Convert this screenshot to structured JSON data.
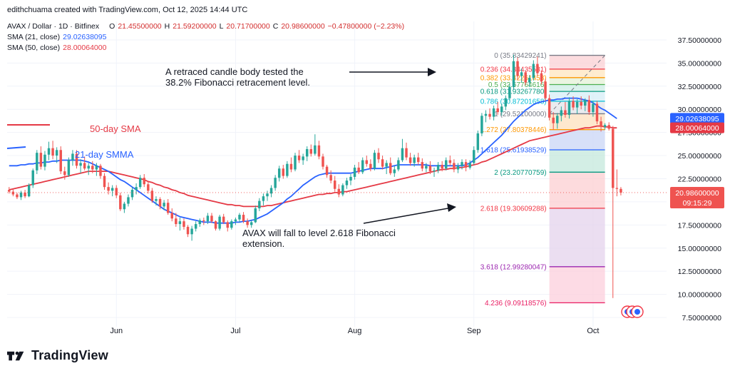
{
  "header": {
    "credit": "edithchuama created with TradingView.com, Oct 12, 2025 14:44 UTC"
  },
  "legend": {
    "symbol": "AVAX / Dollar · 1D · Bitfinex",
    "o_label": "O",
    "o_value": "21.45500000",
    "h_label": "H",
    "h_value": "21.59200000",
    "l_label": "L",
    "l_value": "20.71700000",
    "c_label": "C",
    "c_value": "20.98600000",
    "change": "−0.47800000 (−2.23%)",
    "sma21_label": "SMA (21, close)",
    "sma21_value": "29.02638095",
    "sma50_label": "SMA (50, close)",
    "sma50_value": "28.00064000"
  },
  "annotations": {
    "note1": "A retraced candle body tested the 38.2% Fibonacci retracement level.",
    "note2": "AVAX  will fall to level 2.618 Fibonacci extension.",
    "sma50_label": "50-day SMA",
    "sma21_label": "21-day SMMA"
  },
  "price_labels": {
    "last_price": "20.98600000",
    "countdown": "09:15:29",
    "sma21": "29.02638095",
    "sma50": "28.00064000"
  },
  "colors": {
    "up": "#26a69a",
    "down": "#ef5350",
    "sma21": "#2962ff",
    "sma50": "#e53945",
    "grid": "#f0f3fa"
  },
  "logo": {
    "text": "TradingView"
  },
  "chart_data": {
    "type": "candlestick",
    "y_axis_ticks": [
      "37.50000000",
      "35.00000000",
      "32.50000000",
      "30.00000000",
      "27.50000000",
      "25.00000000",
      "22.50000000",
      "20.00000000",
      "17.50000000",
      "15.00000000",
      "12.50000000",
      "10.00000000",
      "7.50000000"
    ],
    "y_tick_values": [
      37.5,
      35,
      32.5,
      30,
      27.5,
      25,
      22.5,
      20,
      17.5,
      15,
      12.5,
      10,
      7.5
    ],
    "ylim": [
      6.5,
      39.5
    ],
    "x_axis_ticks": [
      "Jun",
      "Jul",
      "Aug",
      "Sep",
      "Oct"
    ],
    "x_tick_index": [
      27,
      57,
      87,
      117,
      147
    ],
    "bar_count": 159,
    "fibonacci": [
      {
        "level": "0",
        "label": "0 (35.83429241)",
        "value": 35.83429241,
        "color": "#787b86"
      },
      {
        "level": "0.236",
        "label": "0.236 (34.34435581)",
        "value": 34.34435581,
        "color": "#f23645"
      },
      {
        "level": "0.382",
        "label": "0.382 (33.42261453)",
        "value": 33.42261453,
        "color": "#ff9800"
      },
      {
        "level": "0.5",
        "label": "0.5 (32.67764616)",
        "value": 32.67764616,
        "color": "#4caf50"
      },
      {
        "level": "0.618",
        "label": "0.618 (31.93267780)",
        "value": 31.9326778,
        "color": "#089981"
      },
      {
        "level": "0.786",
        "label": "0.786 (30.87201658)",
        "value": 30.87201658,
        "color": "#00bcd4"
      },
      {
        "level": "1",
        "label": "1 (29.52100000)",
        "value": 29.521,
        "color": "#787b86"
      },
      {
        "level": "1.272",
        "label": "1.272 (27.80378446)",
        "value": 27.80378446,
        "color": "#ff9800"
      },
      {
        "level": "1.618",
        "label": "1.618 (25.61938529)",
        "value": 25.61938529,
        "color": "#2962ff"
      },
      {
        "level": "2",
        "label": "2 (23.20770759)",
        "value": 23.20770759,
        "color": "#089981"
      },
      {
        "level": "2.618",
        "label": "2.618 (19.30609288)",
        "value": 19.30609288,
        "color": "#f23645"
      },
      {
        "level": "3.618",
        "label": "3.618 (12.99280047)",
        "value": 12.99280047,
        "color": "#9c27b0"
      },
      {
        "level": "4.236",
        "label": "4.236 (9.09118576)",
        "value": 9.09118576,
        "color": "#e91e63"
      }
    ],
    "candles": [
      [
        21.3,
        21.6,
        20.9,
        21.1
      ],
      [
        21.1,
        21.4,
        20.6,
        20.8
      ],
      [
        20.8,
        21.0,
        20.3,
        20.5
      ],
      [
        20.5,
        21.2,
        20.2,
        21.0
      ],
      [
        21.0,
        21.3,
        20.4,
        20.6
      ],
      [
        20.6,
        22.0,
        20.5,
        21.8
      ],
      [
        21.8,
        23.6,
        21.5,
        23.4
      ],
      [
        23.4,
        25.6,
        23.0,
        25.3
      ],
      [
        25.3,
        26.0,
        23.5,
        23.8
      ],
      [
        23.8,
        25.5,
        23.4,
        25.1
      ],
      [
        25.1,
        26.5,
        24.5,
        25.8
      ],
      [
        25.8,
        26.6,
        24.6,
        25.0
      ],
      [
        25.0,
        25.9,
        24.2,
        25.6
      ],
      [
        25.6,
        26.0,
        23.0,
        23.3
      ],
      [
        23.3,
        23.8,
        22.4,
        22.9
      ],
      [
        22.9,
        24.8,
        22.7,
        24.5
      ],
      [
        24.5,
        25.6,
        23.9,
        25.2
      ],
      [
        25.2,
        25.6,
        23.6,
        23.9
      ],
      [
        23.9,
        24.6,
        23.1,
        24.2
      ],
      [
        24.2,
        24.9,
        23.4,
        23.6
      ],
      [
        23.6,
        24.2,
        22.9,
        23.9
      ],
      [
        23.9,
        24.4,
        23.1,
        23.5
      ],
      [
        23.5,
        24.2,
        22.8,
        23.9
      ],
      [
        23.9,
        24.1,
        22.5,
        22.8
      ],
      [
        22.8,
        23.1,
        21.3,
        21.6
      ],
      [
        21.6,
        22.1,
        20.8,
        21.2
      ],
      [
        21.2,
        21.8,
        20.6,
        21.5
      ],
      [
        21.5,
        21.8,
        20.4,
        20.7
      ],
      [
        20.7,
        21.0,
        19.0,
        19.2
      ],
      [
        19.2,
        20.0,
        18.8,
        19.8
      ],
      [
        19.8,
        20.8,
        19.5,
        20.5
      ],
      [
        20.5,
        21.6,
        20.2,
        21.3
      ],
      [
        21.3,
        22.0,
        20.8,
        21.6
      ],
      [
        21.6,
        22.9,
        21.4,
        22.6
      ],
      [
        22.6,
        23.0,
        21.6,
        21.9
      ],
      [
        21.9,
        22.2,
        20.9,
        21.2
      ],
      [
        21.2,
        21.5,
        19.9,
        20.1
      ],
      [
        20.1,
        20.6,
        19.6,
        20.3
      ],
      [
        20.3,
        20.5,
        19.2,
        19.5
      ],
      [
        19.5,
        20.2,
        19.1,
        19.9
      ],
      [
        19.9,
        20.3,
        18.6,
        18.8
      ],
      [
        18.8,
        19.3,
        17.9,
        18.2
      ],
      [
        18.2,
        18.8,
        17.3,
        17.6
      ],
      [
        17.6,
        18.3,
        16.9,
        17.9
      ],
      [
        17.9,
        18.2,
        17.0,
        17.3
      ],
      [
        17.3,
        17.5,
        16.2,
        16.5
      ],
      [
        16.5,
        17.4,
        15.8,
        17.1
      ],
      [
        17.1,
        17.9,
        16.8,
        17.6
      ],
      [
        17.6,
        18.2,
        17.3,
        18.0
      ],
      [
        18.0,
        18.3,
        17.5,
        17.9
      ],
      [
        17.9,
        18.8,
        17.6,
        18.5
      ],
      [
        18.5,
        18.8,
        17.7,
        17.9
      ],
      [
        17.9,
        18.0,
        16.9,
        17.1
      ],
      [
        17.1,
        18.6,
        16.9,
        18.4
      ],
      [
        18.4,
        18.7,
        17.6,
        17.8
      ],
      [
        17.8,
        18.0,
        16.8,
        17.2
      ],
      [
        17.2,
        18.1,
        17.0,
        17.9
      ],
      [
        17.9,
        18.3,
        17.5,
        18.1
      ],
      [
        18.1,
        18.8,
        17.8,
        18.6
      ],
      [
        18.6,
        18.9,
        17.7,
        17.9
      ],
      [
        17.9,
        18.2,
        17.2,
        17.5
      ],
      [
        17.5,
        18.0,
        17.2,
        17.8
      ],
      [
        17.8,
        19.6,
        17.7,
        19.3
      ],
      [
        19.3,
        20.4,
        19.0,
        20.1
      ],
      [
        20.1,
        20.9,
        19.6,
        20.6
      ],
      [
        20.6,
        21.2,
        20.1,
        20.9
      ],
      [
        20.9,
        21.8,
        20.5,
        21.5
      ],
      [
        21.5,
        22.9,
        21.2,
        22.6
      ],
      [
        22.6,
        23.9,
        22.2,
        23.6
      ],
      [
        23.6,
        24.0,
        22.5,
        22.8
      ],
      [
        22.8,
        24.4,
        22.6,
        24.1
      ],
      [
        24.1,
        24.8,
        23.2,
        23.5
      ],
      [
        23.5,
        25.3,
        23.3,
        25.0
      ],
      [
        25.0,
        25.6,
        24.2,
        24.5
      ],
      [
        24.5,
        25.2,
        24.0,
        24.9
      ],
      [
        24.9,
        26.0,
        24.4,
        25.7
      ],
      [
        25.7,
        26.2,
        24.9,
        25.2
      ],
      [
        25.2,
        27.3,
        25.0,
        26.1
      ],
      [
        26.1,
        26.6,
        24.6,
        24.9
      ],
      [
        24.9,
        25.2,
        23.5,
        23.8
      ],
      [
        23.8,
        24.0,
        22.6,
        22.9
      ],
      [
        22.9,
        23.4,
        22.0,
        22.3
      ],
      [
        22.3,
        22.8,
        21.1,
        21.4
      ],
      [
        21.4,
        21.9,
        20.5,
        20.8
      ],
      [
        20.8,
        22.0,
        20.6,
        21.8
      ],
      [
        21.8,
        22.6,
        21.4,
        22.3
      ],
      [
        22.3,
        23.0,
        21.8,
        22.7
      ],
      [
        22.7,
        24.0,
        22.4,
        23.7
      ],
      [
        23.7,
        24.3,
        23.0,
        23.2
      ],
      [
        23.2,
        24.8,
        23.0,
        24.5
      ],
      [
        24.5,
        25.0,
        23.8,
        24.1
      ],
      [
        24.1,
        24.6,
        23.3,
        23.6
      ],
      [
        23.6,
        25.6,
        23.4,
        25.3
      ],
      [
        25.3,
        25.8,
        24.2,
        24.6
      ],
      [
        24.6,
        25.0,
        23.5,
        23.8
      ],
      [
        23.8,
        24.5,
        23.0,
        24.2
      ],
      [
        24.2,
        24.8,
        22.9,
        23.1
      ],
      [
        23.1,
        23.9,
        22.7,
        23.5
      ],
      [
        23.5,
        24.8,
        23.3,
        24.5
      ],
      [
        24.5,
        26.8,
        24.3,
        25.8
      ],
      [
        25.8,
        26.4,
        24.5,
        24.8
      ],
      [
        24.8,
        25.3,
        23.9,
        24.2
      ],
      [
        24.2,
        25.1,
        23.8,
        24.8
      ],
      [
        24.8,
        25.3,
        24.0,
        24.3
      ],
      [
        24.3,
        24.7,
        23.3,
        23.6
      ],
      [
        23.6,
        24.2,
        23.2,
        23.9
      ],
      [
        23.9,
        24.4,
        23.0,
        23.3
      ],
      [
        23.3,
        23.7,
        22.7,
        23.4
      ],
      [
        23.4,
        24.3,
        23.1,
        24.0
      ],
      [
        24.0,
        24.4,
        23.3,
        23.6
      ],
      [
        23.6,
        24.8,
        23.4,
        24.5
      ],
      [
        24.5,
        25.0,
        23.9,
        24.2
      ],
      [
        24.2,
        24.6,
        23.2,
        23.5
      ],
      [
        23.5,
        24.2,
        23.1,
        23.9
      ],
      [
        23.9,
        24.6,
        23.5,
        24.3
      ],
      [
        24.3,
        24.6,
        23.3,
        23.7
      ],
      [
        23.7,
        24.5,
        23.5,
        24.2
      ],
      [
        24.2,
        26.0,
        24.0,
        25.6
      ],
      [
        25.6,
        27.7,
        25.3,
        27.4
      ],
      [
        27.4,
        29.6,
        27.1,
        29.3
      ],
      [
        29.3,
        29.9,
        28.6,
        29.5
      ],
      [
        29.5,
        30.1,
        28.9,
        29.2
      ],
      [
        29.2,
        30.4,
        28.8,
        30.1
      ],
      [
        30.1,
        30.8,
        29.4,
        29.7
      ],
      [
        29.7,
        30.6,
        29.3,
        30.3
      ],
      [
        30.3,
        31.5,
        29.9,
        31.2
      ],
      [
        31.2,
        32.7,
        30.9,
        32.4
      ],
      [
        32.4,
        35.9,
        32.1,
        35.2
      ],
      [
        35.2,
        35.6,
        33.2,
        33.6
      ],
      [
        33.6,
        34.4,
        32.9,
        34.0
      ],
      [
        34.0,
        34.2,
        32.6,
        32.9
      ],
      [
        32.9,
        33.7,
        32.4,
        33.4
      ],
      [
        33.4,
        35.3,
        33.1,
        34.9
      ],
      [
        34.9,
        35.7,
        33.6,
        33.9
      ],
      [
        33.9,
        34.2,
        32.7,
        33.0
      ],
      [
        33.0,
        33.3,
        30.9,
        31.2
      ],
      [
        31.2,
        31.6,
        28.8,
        29.1
      ],
      [
        29.1,
        29.7,
        27.8,
        28.5
      ],
      [
        28.5,
        29.6,
        27.9,
        29.3
      ],
      [
        29.3,
        30.3,
        28.7,
        29.9
      ],
      [
        29.9,
        30.8,
        29.1,
        29.4
      ],
      [
        29.4,
        31.3,
        29.0,
        30.9
      ],
      [
        30.9,
        31.4,
        29.9,
        30.2
      ],
      [
        30.2,
        31.1,
        29.5,
        30.8
      ],
      [
        30.8,
        31.4,
        30.0,
        30.4
      ],
      [
        30.4,
        31.2,
        29.8,
        31.0
      ],
      [
        31.0,
        31.5,
        29.4,
        29.7
      ],
      [
        29.7,
        30.9,
        29.2,
        30.6
      ],
      [
        30.6,
        30.9,
        28.4,
        28.7
      ],
      [
        28.7,
        29.2,
        27.6,
        28.1
      ],
      [
        28.1,
        28.5,
        27.8,
        28.3
      ],
      [
        28.3,
        28.6,
        27.7,
        27.9
      ],
      [
        27.9,
        28.2,
        9.6,
        21.5
      ],
      [
        21.5,
        23.5,
        20.6,
        21.4
      ],
      [
        21.4,
        21.6,
        20.7,
        21.0
      ]
    ],
    "sma21": [
      23.9,
      23.9,
      23.9,
      24.0,
      24.0,
      24.1,
      24.1,
      24.2,
      24.2,
      24.3,
      24.3,
      24.4,
      24.4,
      24.5,
      24.5,
      24.5,
      24.5,
      24.5,
      24.5,
      24.4,
      24.3,
      24.1,
      23.9,
      23.7,
      23.5,
      23.3,
      23.0,
      22.7,
      22.4,
      22.2,
      21.9,
      21.6,
      21.3,
      21.0,
      20.7,
      20.4,
      20.1,
      19.8,
      19.5,
      19.2,
      19.0,
      18.8,
      18.6,
      18.4,
      18.3,
      18.2,
      18.1,
      18.0,
      17.9,
      17.8,
      17.8,
      17.8,
      17.7,
      17.7,
      17.7,
      17.7,
      17.7,
      17.8,
      17.8,
      17.9,
      17.9,
      18.0,
      18.1,
      18.3,
      18.5,
      18.7,
      19.0,
      19.3,
      19.6,
      19.9,
      20.3,
      20.6,
      21.0,
      21.4,
      21.8,
      22.1,
      22.4,
      22.7,
      22.9,
      23.0,
      23.1,
      23.1,
      23.1,
      23.1,
      23.1,
      23.1,
      23.1,
      23.2,
      23.3,
      23.4,
      23.5,
      23.6,
      23.6,
      23.6,
      23.6,
      23.7,
      23.8,
      23.9,
      24.0,
      24.0,
      24.0,
      24.0,
      24.0,
      24.0,
      24.0,
      24.0,
      23.9,
      23.9,
      23.9,
      23.9,
      23.9,
      23.9,
      23.9,
      23.9,
      23.9,
      24.0,
      24.2,
      24.5,
      24.8,
      25.2,
      25.6,
      26.0,
      26.4,
      26.8,
      27.2,
      27.7,
      28.2,
      28.7,
      29.1,
      29.5,
      29.9,
      30.2,
      30.5,
      30.7,
      30.8,
      30.9,
      31.0,
      31.0,
      31.1,
      31.1,
      31.2,
      31.2,
      31.2,
      31.2,
      31.1,
      31.0,
      30.9,
      30.7,
      30.4,
      30.1,
      29.9,
      29.6,
      29.3,
      29.0
    ],
    "sma50": [
      21.3,
      21.4,
      21.5,
      21.6,
      21.7,
      21.8,
      21.9,
      22.0,
      22.1,
      22.2,
      22.3,
      22.4,
      22.5,
      22.6,
      22.7,
      22.8,
      22.9,
      23.0,
      23.1,
      23.2,
      23.3,
      23.3,
      23.3,
      23.3,
      23.3,
      23.3,
      23.2,
      23.1,
      23.0,
      22.9,
      22.8,
      22.7,
      22.6,
      22.5,
      22.4,
      22.2,
      22.1,
      21.9,
      21.8,
      21.6,
      21.5,
      21.3,
      21.2,
      21.0,
      20.9,
      20.7,
      20.6,
      20.5,
      20.4,
      20.3,
      20.2,
      20.1,
      20.0,
      19.9,
      19.8,
      19.7,
      19.7,
      19.6,
      19.6,
      19.5,
      19.5,
      19.5,
      19.5,
      19.5,
      19.5,
      19.6,
      19.6,
      19.7,
      19.8,
      19.9,
      20.0,
      20.1,
      20.2,
      20.3,
      20.4,
      20.5,
      20.6,
      20.7,
      20.8,
      20.8,
      20.9,
      20.9,
      21.0,
      21.0,
      21.1,
      21.1,
      21.2,
      21.3,
      21.4,
      21.5,
      21.6,
      21.7,
      21.8,
      21.9,
      22.0,
      22.1,
      22.2,
      22.3,
      22.4,
      22.5,
      22.6,
      22.7,
      22.8,
      22.9,
      23.0,
      23.1,
      23.2,
      23.3,
      23.4,
      23.5,
      23.5,
      23.6,
      23.6,
      23.7,
      23.7,
      23.8,
      23.9,
      24.0,
      24.1,
      24.3,
      24.4,
      24.6,
      24.8,
      25.0,
      25.2,
      25.4,
      25.6,
      25.8,
      26.0,
      26.2,
      26.4,
      26.6,
      26.7,
      26.8,
      26.9,
      27.0,
      27.1,
      27.2,
      27.3,
      27.4,
      27.5,
      27.6,
      27.7,
      27.8,
      27.9,
      28.0,
      28.0,
      28.1,
      28.2,
      28.2,
      28.1,
      28.1,
      28.0,
      28.0
    ]
  }
}
